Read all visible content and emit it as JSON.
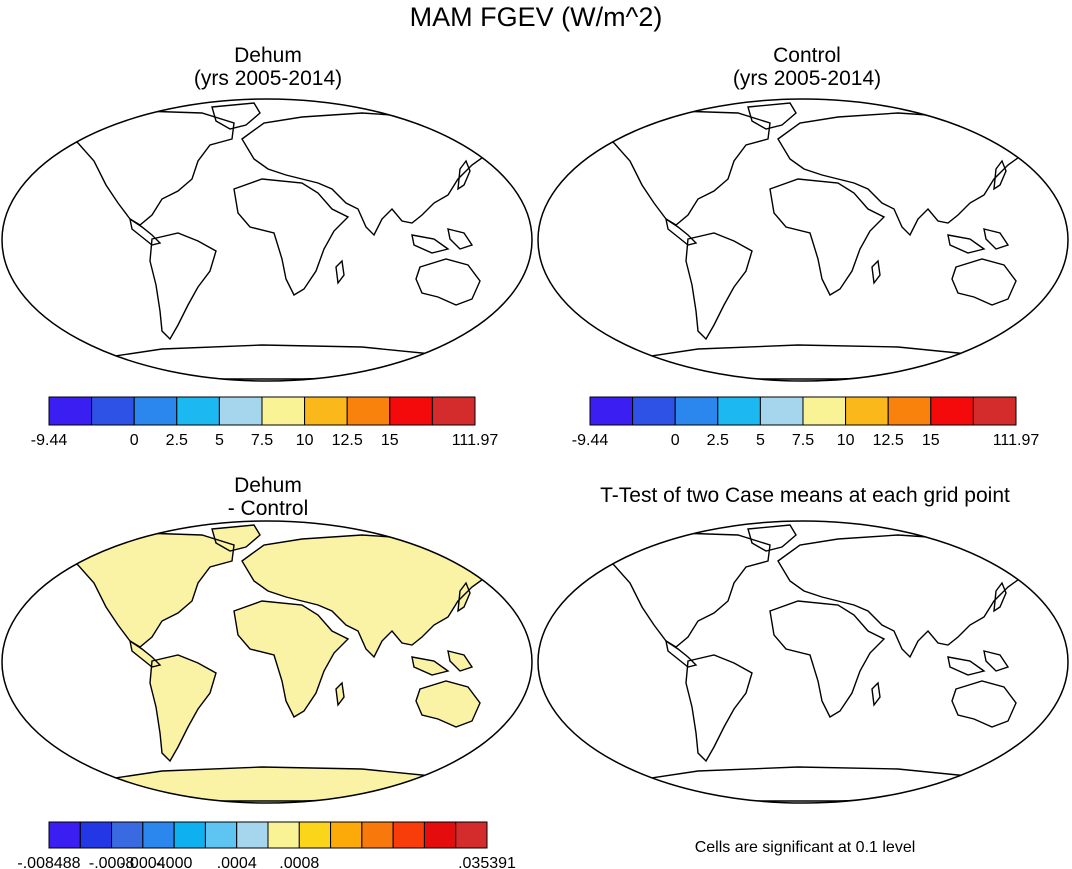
{
  "title": "MAM FGEV (W/m^2)",
  "panels": {
    "dehum": {
      "line1": "Dehum",
      "line2": "(yrs 2005-2014)"
    },
    "control": {
      "line1": "Control",
      "line2": "(yrs 2005-2014)"
    },
    "diff": {
      "line1": "Dehum",
      "line2": "- Control"
    },
    "ttest": {
      "title": "T-Test of two Case means at each grid point",
      "note": "Cells are significant at 0.1 level"
    }
  },
  "colorbar_main": {
    "colors": [
      "#3b1ff2",
      "#2e52e6",
      "#2b86ee",
      "#1cb8f2",
      "#a6d6ee",
      "#faf396",
      "#fbb81a",
      "#f8820c",
      "#f40a0a",
      "#d42c2c"
    ],
    "labels": [
      "-9.44",
      "0",
      "2.5",
      "5",
      "7.5",
      "10",
      "12.5",
      "15",
      "111.97"
    ]
  },
  "colorbar_diff": {
    "colors": [
      "#3b1ff2",
      "#2437e6",
      "#3a6ae2",
      "#2b86ee",
      "#0fb0f0",
      "#5ec4f2",
      "#a6d6ee",
      "#faf396",
      "#fbd51a",
      "#fbaa0a",
      "#f8780c",
      "#f83d0a",
      "#e40c0c",
      "#d42c2c"
    ],
    "labels": [
      "-.008488",
      "-.0008",
      "-.0004",
      "-.000",
      ".0004",
      ".0008",
      ".035391"
    ]
  }
}
